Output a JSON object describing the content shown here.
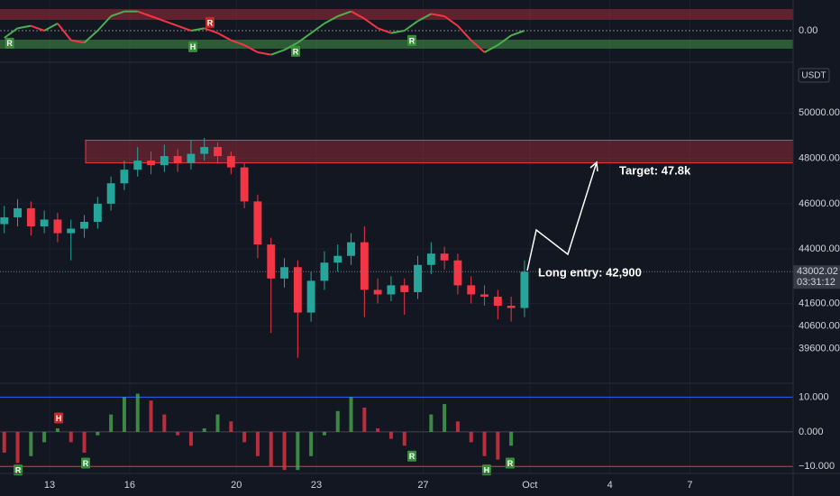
{
  "chart_data": {
    "type": "candlestick",
    "x": [
      11.3,
      11.8,
      12.3,
      12.8,
      13.3,
      13.8,
      14.3,
      14.8,
      15.3,
      15.8,
      16.3,
      16.8,
      17.3,
      17.8,
      18.3,
      18.8,
      19.3,
      19.8,
      20.3,
      20.8,
      21.3,
      21.8,
      22.3,
      22.8,
      23.3,
      23.8,
      24.3,
      24.8,
      25.3,
      25.8,
      26.3,
      26.8,
      27.3,
      27.8,
      28.3,
      28.8,
      29.3,
      29.8,
      30.3,
      30.8
    ],
    "open": [
      45100,
      45400,
      45800,
      45000,
      45300,
      44700,
      44900,
      45200,
      46000,
      46900,
      47500,
      47900,
      47700,
      48100,
      47800,
      48200,
      48500,
      48100,
      47600,
      46100,
      44200,
      42700,
      43200,
      41200,
      42600,
      43400,
      43700,
      44300,
      42200,
      42000,
      42400,
      42100,
      43300,
      43800,
      43500,
      42400,
      42000,
      41900,
      41500,
      41400
    ],
    "high": [
      45900,
      46200,
      46100,
      45700,
      45600,
      45300,
      45500,
      46300,
      47200,
      47900,
      48500,
      48300,
      48600,
      48400,
      48800,
      48900,
      48700,
      48300,
      47800,
      46400,
      44500,
      43600,
      43500,
      43000,
      43900,
      44200,
      44700,
      45000,
      42700,
      42800,
      42700,
      43700,
      44300,
      44100,
      43800,
      42800,
      42400,
      42200,
      41900,
      43500
    ],
    "low": [
      44700,
      45000,
      44600,
      44700,
      44300,
      43500,
      44500,
      44900,
      45700,
      46600,
      47200,
      47300,
      47400,
      47400,
      47500,
      47900,
      47800,
      47300,
      45800,
      43600,
      40300,
      42300,
      39200,
      40800,
      42200,
      43000,
      43300,
      41000,
      41600,
      41700,
      41100,
      41800,
      42900,
      43100,
      42000,
      41600,
      41500,
      40900,
      40800,
      41000
    ],
    "close": [
      45400,
      45800,
      45000,
      45300,
      44700,
      44900,
      45200,
      46000,
      46900,
      47500,
      47900,
      47700,
      48100,
      47800,
      48200,
      48500,
      48100,
      47600,
      46100,
      44200,
      42700,
      43200,
      41200,
      42600,
      43400,
      43700,
      44300,
      42200,
      42000,
      42400,
      42100,
      43300,
      43800,
      43500,
      42400,
      42000,
      41900,
      41500,
      41400,
      43002
    ],
    "up_color": "#26a69a",
    "down_color": "#f23645",
    "xlim": [
      11.14,
      40.87
    ],
    "xticks": [
      13,
      16,
      20,
      23,
      27,
      {
        "value": 31,
        "label": "Oct"
      },
      {
        "value": 34,
        "label": "4"
      },
      {
        "value": 37,
        "label": "7"
      }
    ],
    "ylim": [
      38080,
      52200
    ],
    "yticks": [
      {
        "value": 50000,
        "label": "50000.00"
      },
      {
        "value": 48000,
        "label": "48000.00"
      },
      {
        "value": 46000,
        "label": "46000.00"
      },
      {
        "value": 44000,
        "label": "44000.00"
      },
      {
        "value": 41600,
        "label": "41600.00"
      },
      {
        "value": 40600,
        "label": "40600.00"
      },
      {
        "value": 39600,
        "label": "39600.00"
      }
    ],
    "grid": true,
    "currency": "USDT",
    "last_price": 43002.02,
    "countdown": "03:31:12",
    "zones": [
      {
        "from": 14.35,
        "low": 47800,
        "high": 48800,
        "color": "#f23645"
      }
    ],
    "annotations": [
      "Target: 47.8k",
      "Long entry: 42,900"
    ],
    "top_indicator": {
      "values": [
        -0.3,
        0.1,
        0.2,
        0.0,
        0.3,
        -0.4,
        -0.5,
        0.0,
        0.6,
        0.8,
        0.8,
        0.6,
        0.4,
        0.2,
        0.0,
        0.1,
        -0.1,
        -0.4,
        -0.6,
        -0.9,
        -1.0,
        -0.8,
        -0.5,
        -0.1,
        0.3,
        0.6,
        0.8,
        0.5,
        0.1,
        -0.1,
        0.0,
        0.4,
        0.7,
        0.6,
        0.2,
        -0.4,
        -0.9,
        -0.6,
        -0.2,
        0.0
      ],
      "ylim": [
        -1.2,
        1.2
      ],
      "yticks": [
        {
          "value": 0,
          "label": "0.00"
        }
      ],
      "signals": [
        {
          "x": 11.5,
          "y": -0.52,
          "label": "R",
          "color": "#388e3c"
        },
        {
          "x": 18.37,
          "y": -0.67,
          "label": "H",
          "color": "#388e3c"
        },
        {
          "x": 19.01,
          "y": 0.34,
          "label": "R",
          "color": "#c62828"
        },
        {
          "x": 22.22,
          "y": -0.86,
          "label": "R",
          "color": "#388e3c"
        },
        {
          "x": 26.58,
          "y": -0.41,
          "label": "R",
          "color": "#388e3c"
        }
      ]
    },
    "oscillator": {
      "values": [
        -6,
        -9,
        -7,
        -3,
        1,
        -3,
        -6,
        -1,
        5,
        10,
        11,
        9,
        5,
        -1,
        -4,
        1,
        5,
        3,
        -3,
        -7,
        -10,
        -11,
        -11,
        -7,
        -1,
        6,
        10,
        7,
        1,
        -2,
        -4,
        0,
        5,
        8,
        3,
        -3,
        -7,
        -8,
        -4,
        0
      ],
      "ylim": [
        -12,
        14
      ],
      "yticks": [
        {
          "value": 10,
          "label": "10.000"
        },
        {
          "value": 0,
          "label": "0.000"
        },
        {
          "value": -10,
          "label": "−10.000"
        }
      ],
      "signals": [
        {
          "x": 11.82,
          "y": -11,
          "label": "R",
          "color": "#388e3c"
        },
        {
          "x": 13.34,
          "y": 4,
          "label": "H",
          "color": "#c62828"
        },
        {
          "x": 14.35,
          "y": -9,
          "label": "R",
          "color": "#388e3c"
        },
        {
          "x": 26.58,
          "y": -7,
          "label": "R",
          "color": "#388e3c"
        },
        {
          "x": 29.38,
          "y": -11,
          "label": "H",
          "color": "#388e3c"
        },
        {
          "x": 30.26,
          "y": -9,
          "label": "R",
          "color": "#388e3c"
        }
      ]
    }
  }
}
